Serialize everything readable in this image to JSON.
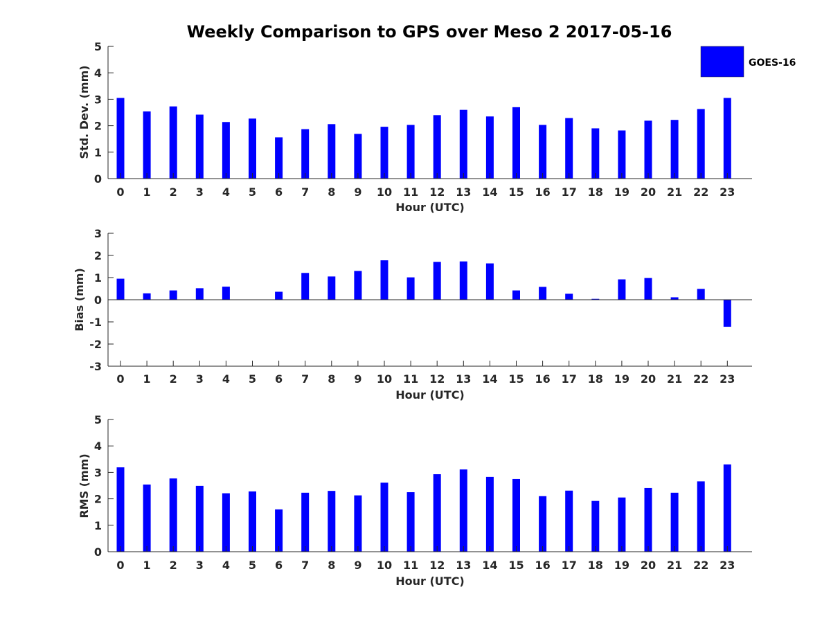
{
  "figure": {
    "title": "Weekly Comparison to GPS over Meso 2 2017-05-16",
    "legend": {
      "label": "GOES-16",
      "placement": "top-right"
    },
    "bar_color": "#0000ff",
    "axis_color": "#262626"
  },
  "chart_data": [
    {
      "type": "bar",
      "name": "std",
      "series_name": "GOES-16",
      "xlabel": "Hour (UTC)",
      "ylabel": "Std. Dev. (mm)",
      "ylim": [
        0,
        5
      ],
      "yticks": [
        0,
        1,
        2,
        3,
        4,
        5
      ],
      "categories": [
        "0",
        "1",
        "2",
        "3",
        "4",
        "5",
        "6",
        "7",
        "8",
        "9",
        "10",
        "11",
        "12",
        "13",
        "14",
        "15",
        "16",
        "17",
        "18",
        "19",
        "20",
        "21",
        "22",
        "23"
      ],
      "values": [
        3.05,
        2.54,
        2.73,
        2.42,
        2.14,
        2.27,
        1.56,
        1.87,
        2.06,
        1.69,
        1.96,
        2.03,
        2.4,
        2.6,
        2.35,
        2.7,
        2.03,
        2.29,
        1.9,
        1.82,
        2.19,
        2.22,
        2.63,
        3.05
      ],
      "grid": false
    },
    {
      "type": "bar",
      "name": "bias",
      "series_name": "GOES-16",
      "xlabel": "Hour (UTC)",
      "ylabel": "Bias (mm)",
      "ylim": [
        -3,
        3
      ],
      "yticks": [
        -3,
        -2,
        -1,
        0,
        1,
        2,
        3
      ],
      "categories": [
        "0",
        "1",
        "2",
        "3",
        "4",
        "5",
        "6",
        "7",
        "8",
        "9",
        "10",
        "11",
        "12",
        "13",
        "14",
        "15",
        "16",
        "17",
        "18",
        "19",
        "20",
        "21",
        "22",
        "23"
      ],
      "values": [
        0.95,
        0.29,
        0.42,
        0.52,
        0.59,
        0.01,
        0.36,
        1.21,
        1.05,
        1.3,
        1.78,
        1.01,
        1.71,
        1.73,
        1.64,
        0.42,
        0.58,
        0.27,
        0.04,
        0.92,
        0.98,
        0.11,
        0.49,
        -1.22
      ],
      "grid": false
    },
    {
      "type": "bar",
      "name": "rms",
      "series_name": "GOES-16",
      "xlabel": "Hour (UTC)",
      "ylabel": "RMS (mm)",
      "ylim": [
        0,
        5
      ],
      "yticks": [
        0,
        1,
        2,
        3,
        4,
        5
      ],
      "categories": [
        "0",
        "1",
        "2",
        "3",
        "4",
        "5",
        "6",
        "7",
        "8",
        "9",
        "10",
        "11",
        "12",
        "13",
        "14",
        "15",
        "16",
        "17",
        "18",
        "19",
        "20",
        "21",
        "22",
        "23"
      ],
      "values": [
        3.19,
        2.54,
        2.77,
        2.49,
        2.21,
        2.28,
        1.6,
        2.23,
        2.3,
        2.13,
        2.61,
        2.25,
        2.93,
        3.11,
        2.83,
        2.75,
        2.1,
        2.31,
        1.92,
        2.05,
        2.41,
        2.23,
        2.66,
        3.3
      ],
      "grid": false
    }
  ]
}
